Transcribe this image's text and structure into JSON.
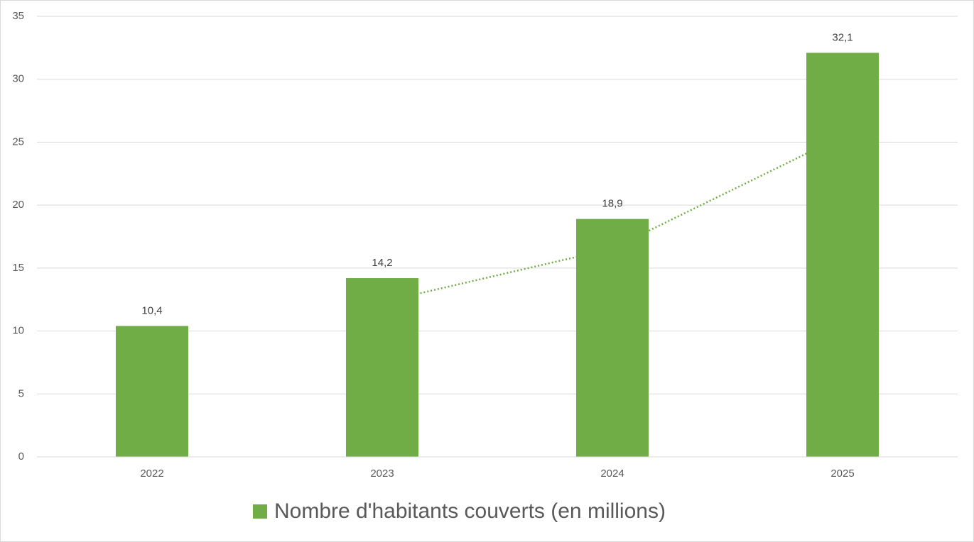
{
  "chart_data": {
    "type": "bar",
    "categories": [
      "2022",
      "2023",
      "2024",
      "2025"
    ],
    "series": [
      {
        "name": "Nombre d'habitants couverts (en millions)",
        "color": "#70ad47",
        "values": [
          10.4,
          14.2,
          18.9,
          32.1
        ],
        "value_labels": [
          "10,4",
          "14,2",
          "18,9",
          "32,1"
        ]
      }
    ],
    "ylim": [
      0,
      35
    ],
    "yticks": [
      0,
      5,
      10,
      15,
      20,
      25,
      30,
      35
    ],
    "grid": true,
    "legend": "bottom",
    "trendline": "moving_average",
    "trendline_period": 2
  }
}
